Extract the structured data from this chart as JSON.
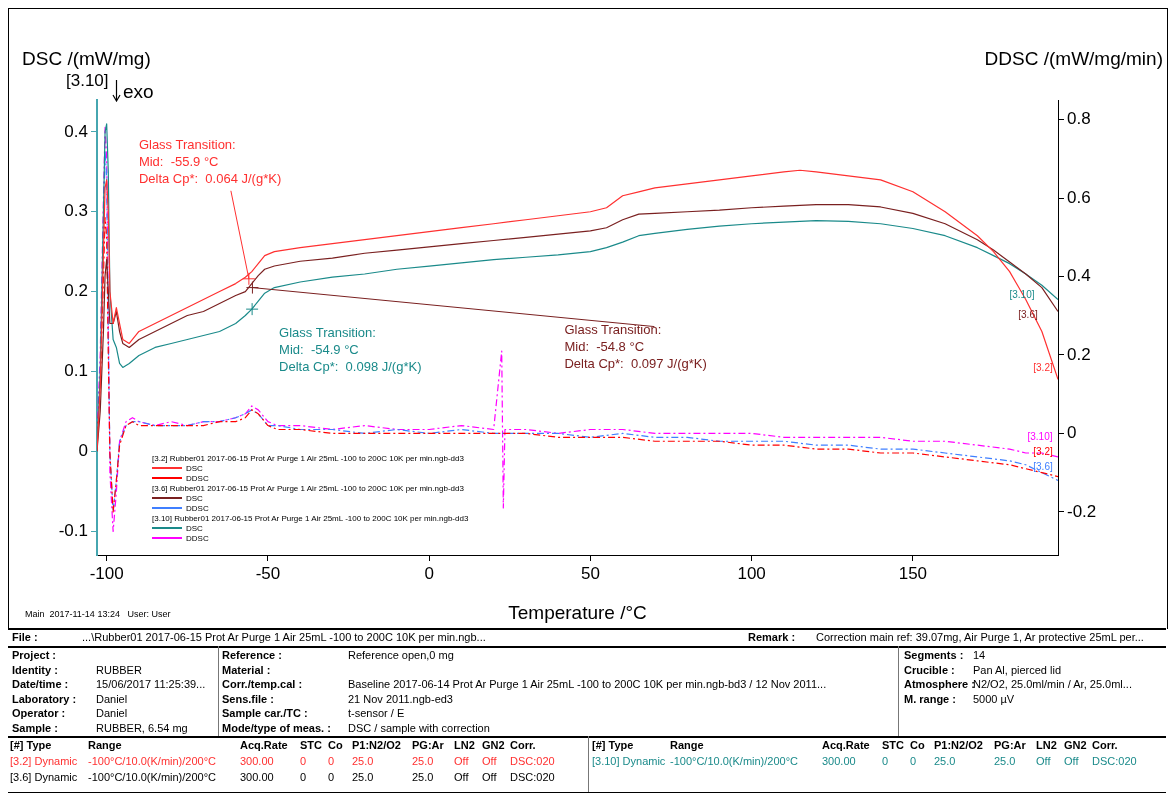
{
  "chart_data": [
    {
      "type": "line",
      "xlabel": "Temperature /°C",
      "ylabel": "DSC /(mW/mg)",
      "y2label": "DDSC /(mW/mg/min)",
      "xlim": [
        -103,
        195
      ],
      "xticks": [
        -100,
        -50,
        0,
        50,
        100,
        150
      ],
      "ylim": [
        -0.13,
        0.44
      ],
      "yticks": [
        -0.1,
        0.0,
        0.1,
        0.2,
        0.3,
        0.4
      ],
      "y2lim": [
        -0.31,
        0.85
      ],
      "y2ticks": [
        -0.2,
        0.0,
        0.2,
        0.4,
        0.6,
        0.8
      ],
      "grid": false,
      "legend": "bottom left",
      "marker": "none",
      "series": [
        {
          "name": "DSC",
          "color": "#ff3030",
          "line_style": "solid",
          "x": [
            -103,
            -102,
            -101,
            -100.5,
            -100,
            -99.5,
            -99,
            -98,
            -97,
            -96,
            -95,
            -93,
            -90,
            -85,
            -80,
            -75,
            -70,
            -65,
            -60,
            -57,
            -55,
            -53,
            -51,
            -48,
            -40,
            -30,
            -20,
            -10,
            0,
            10,
            20,
            30,
            40,
            50,
            55,
            60,
            65,
            70,
            80,
            90,
            100,
            110,
            115,
            120,
            130,
            140,
            150,
            160,
            170,
            175,
            180,
            185,
            190,
            195
          ],
          "values": [
            0.0,
            0.08,
            0.25,
            0.33,
            0.34,
            0.3,
            0.2,
            0.16,
            0.18,
            0.16,
            0.14,
            0.135,
            0.15,
            0.16,
            0.17,
            0.18,
            0.19,
            0.2,
            0.21,
            0.218,
            0.225,
            0.235,
            0.245,
            0.25,
            0.255,
            0.26,
            0.265,
            0.27,
            0.275,
            0.28,
            0.285,
            0.29,
            0.295,
            0.3,
            0.305,
            0.32,
            0.325,
            0.33,
            0.335,
            0.34,
            0.345,
            0.35,
            0.352,
            0.35,
            0.345,
            0.34,
            0.325,
            0.3,
            0.27,
            0.25,
            0.225,
            0.19,
            0.15,
            0.09
          ]
        },
        {
          "name": "DSC",
          "color": "#7a2020",
          "line_style": "solid",
          "x": [
            -103,
            -102,
            -101,
            -100.5,
            -100,
            -99.5,
            -99,
            -98,
            -97,
            -96,
            -95,
            -93,
            -90,
            -85,
            -80,
            -75,
            -70,
            -65,
            -60,
            -57,
            -55,
            -53,
            -51,
            -48,
            -40,
            -30,
            -20,
            -10,
            0,
            10,
            20,
            30,
            40,
            50,
            55,
            60,
            65,
            70,
            80,
            90,
            100,
            110,
            115,
            120,
            130,
            140,
            150,
            160,
            170,
            175,
            180,
            185,
            190,
            195
          ],
          "values": [
            0.0,
            0.05,
            0.15,
            0.22,
            0.24,
            0.2,
            0.16,
            0.16,
            0.175,
            0.15,
            0.135,
            0.13,
            0.14,
            0.15,
            0.16,
            0.17,
            0.175,
            0.185,
            0.195,
            0.2,
            0.21,
            0.22,
            0.228,
            0.232,
            0.238,
            0.242,
            0.248,
            0.252,
            0.256,
            0.26,
            0.264,
            0.268,
            0.272,
            0.276,
            0.28,
            0.29,
            0.297,
            0.298,
            0.3,
            0.302,
            0.305,
            0.307,
            0.308,
            0.309,
            0.309,
            0.306,
            0.298,
            0.285,
            0.265,
            0.252,
            0.237,
            0.222,
            0.205,
            0.175
          ]
        },
        {
          "name": "DSC",
          "color": "#1a8a8a",
          "line_style": "solid",
          "x": [
            -103,
            -102,
            -101,
            -100.5,
            -100,
            -99.5,
            -99,
            -98,
            -97,
            -96,
            -95,
            -93,
            -90,
            -85,
            -80,
            -75,
            -70,
            -65,
            -60,
            -57,
            -55,
            -53,
            -51,
            -48,
            -40,
            -30,
            -20,
            -10,
            0,
            10,
            20,
            30,
            40,
            50,
            55,
            60,
            65,
            70,
            80,
            90,
            100,
            110,
            115,
            120,
            130,
            140,
            150,
            160,
            170,
            175,
            180,
            185,
            190,
            195
          ],
          "values": [
            0.0,
            0.1,
            0.3,
            0.4,
            0.41,
            0.35,
            0.2,
            0.14,
            0.13,
            0.11,
            0.105,
            0.11,
            0.12,
            0.13,
            0.135,
            0.14,
            0.145,
            0.15,
            0.16,
            0.17,
            0.178,
            0.188,
            0.198,
            0.205,
            0.212,
            0.218,
            0.222,
            0.228,
            0.232,
            0.236,
            0.24,
            0.243,
            0.246,
            0.25,
            0.255,
            0.262,
            0.27,
            0.273,
            0.278,
            0.282,
            0.285,
            0.287,
            0.288,
            0.289,
            0.288,
            0.285,
            0.279,
            0.27,
            0.255,
            0.245,
            0.235,
            0.222,
            0.208,
            0.19
          ]
        },
        {
          "name": "DDSC",
          "color": "#ff0000",
          "axis": "y2",
          "line_style": "dashed",
          "x": [
            -103,
            -102,
            -101,
            -100.5,
            -100,
            -99.5,
            -99,
            -98,
            -97,
            -96,
            -94,
            -92,
            -90,
            -85,
            -80,
            -75,
            -70,
            -65,
            -60,
            -57,
            -55,
            -53,
            -50,
            -47,
            -40,
            -30,
            -20,
            -10,
            0,
            10,
            20,
            22.5,
            23,
            23.5,
            25,
            30,
            40,
            50,
            60,
            70,
            80,
            90,
            100,
            110,
            120,
            130,
            140,
            150,
            160,
            170,
            180,
            185,
            190,
            195
          ],
          "values": [
            0.0,
            0.12,
            0.4,
            0.55,
            0.5,
            0.2,
            -0.05,
            -0.2,
            -0.12,
            -0.03,
            0.02,
            0.03,
            0.02,
            0.02,
            0.02,
            0.02,
            0.02,
            0.03,
            0.03,
            0.04,
            0.06,
            0.05,
            0.02,
            0.01,
            0.01,
            0.0,
            0.0,
            0.0,
            0.0,
            0.0,
            0.0,
            0.0,
            0.0,
            0.0,
            0.0,
            0.0,
            -0.01,
            -0.01,
            -0.01,
            -0.02,
            -0.02,
            -0.02,
            -0.03,
            -0.03,
            -0.04,
            -0.04,
            -0.05,
            -0.05,
            -0.06,
            -0.07,
            -0.08,
            -0.09,
            -0.1,
            -0.11
          ]
        },
        {
          "name": "DDSC",
          "color": "#3f7fff",
          "axis": "y2",
          "line_style": "dashed",
          "x": [
            -103,
            -102,
            -101,
            -100.5,
            -100,
            -99.5,
            -99,
            -98,
            -97,
            -96,
            -94,
            -92,
            -90,
            -85,
            -80,
            -75,
            -70,
            -65,
            -60,
            -57,
            -55,
            -53,
            -50,
            -47,
            -40,
            -30,
            -20,
            -10,
            0,
            10,
            20,
            22.5,
            23,
            23.5,
            25,
            30,
            40,
            50,
            60,
            70,
            80,
            90,
            100,
            110,
            120,
            130,
            140,
            150,
            160,
            170,
            180,
            185,
            190,
            195
          ],
          "values": [
            0.0,
            0.15,
            0.5,
            0.72,
            0.65,
            0.25,
            -0.05,
            -0.2,
            -0.12,
            -0.02,
            0.02,
            0.03,
            0.03,
            0.02,
            0.02,
            0.02,
            0.03,
            0.03,
            0.04,
            0.05,
            0.06,
            0.05,
            0.02,
            0.02,
            0.01,
            0.01,
            0.0,
            0.01,
            0.0,
            0.01,
            0.0,
            0.0,
            0.0,
            0.0,
            0.0,
            0.0,
            0.0,
            -0.01,
            0.0,
            -0.01,
            -0.01,
            -0.02,
            -0.02,
            -0.02,
            -0.03,
            -0.03,
            -0.04,
            -0.04,
            -0.05,
            -0.06,
            -0.07,
            -0.08,
            -0.1,
            -0.12
          ]
        },
        {
          "name": "DDSC",
          "color": "#ff00ff",
          "axis": "y2",
          "line_style": "dashed",
          "x": [
            -103,
            -102,
            -101,
            -100.5,
            -100,
            -99.5,
            -99,
            -98,
            -97,
            -96,
            -94,
            -92,
            -90,
            -85,
            -80,
            -75,
            -70,
            -65,
            -60,
            -57,
            -55,
            -53,
            -50,
            -47,
            -40,
            -30,
            -20,
            -10,
            0,
            10,
            20,
            22.5,
            23,
            23.5,
            25,
            30,
            40,
            50,
            60,
            70,
            80,
            90,
            100,
            110,
            120,
            130,
            140,
            150,
            160,
            170,
            180,
            185,
            190,
            195
          ],
          "values": [
            0.0,
            0.2,
            0.6,
            0.78,
            0.7,
            0.3,
            -0.1,
            -0.25,
            -0.15,
            -0.02,
            0.03,
            0.04,
            0.03,
            0.02,
            0.03,
            0.02,
            0.03,
            0.03,
            0.04,
            0.05,
            0.07,
            0.06,
            0.03,
            0.02,
            0.02,
            0.01,
            0.02,
            0.01,
            0.01,
            0.02,
            0.01,
            0.21,
            -0.19,
            0.01,
            0.01,
            0.01,
            0.0,
            0.01,
            0.01,
            0.0,
            0.0,
            0.0,
            0.0,
            -0.01,
            -0.01,
            -0.01,
            -0.01,
            -0.02,
            -0.02,
            -0.03,
            -0.04,
            -0.05,
            -0.05,
            -0.06
          ]
        }
      ],
      "annotations": [
        "[3.2] Rubber01 2017-06-15 Prot Ar Purge 1 Air 25mL -100 to 200C 10K per min.ngb-dd3",
        "[3.6] Rubber01 2017-06-15 Prot Ar Purge 1 Air 25mL -100 to 200C 10K per min.ngb-dd3",
        "[3.10] Rubber01 2017-06-15 Prot Ar Purge 1 Air 25mL -100 to 200C 10K per min.ngb-dd3",
        {
          "text": "Glass Transition:\nMid:  -55.9 °C\nDelta Cp*:  0.064 J/(g*K)",
          "x": -55.9,
          "y": 0.216
        },
        {
          "text": "Glass Transition:\nMid:  -54.9 °C\nDelta Cp*:  0.098 J/(g*K)",
          "x": -54.9,
          "y": 0.178
        },
        {
          "text": "Glass Transition:\nMid:  -54.8 °C\nDelta Cp*:  0.097 J/(g*K)",
          "x": -54.8,
          "y": 0.205
        },
        "[3.10]",
        "[3.6]",
        "[3.2]",
        "[3.10]",
        "[3.2]",
        "[3.6]",
        "[3.10]",
        "exo",
        "Main  2017-11-14 13:24   User: User"
      ]
    },
    {
      "type": "other",
      "annotations": [
        "File :",
        "...\\Rubber01 2017-06-15 Prot Ar Purge 1 Air 25mL -100 to 200C 10K per min.ngb...",
        "Remark :",
        "Correction main ref: 39.07mg, Air Purge 1, Ar protective 25mL per...",
        "Project :",
        "Identity :",
        "RUBBER",
        "Date/time :",
        "15/06/2017 11:25:39...",
        "Laboratory :",
        "Daniel",
        "Operator :",
        "Daniel",
        "Sample :",
        "RUBBER, 6.54 mg",
        "Reference :",
        "Reference  open,0 mg",
        "Material :",
        "Corr./temp.cal :",
        "Baseline 2017-06-14 Prot Ar Purge 1 Air 25mL -100 to 200C 10K per min.ngb-bd3 / 12 Nov 2011...",
        "Sens.file :",
        "21 Nov 2011.ngb-ed3",
        "Sample car./TC :",
        "t-sensor / E",
        "Mode/type of meas. :",
        "DSC / sample with correction",
        "Segments :",
        "14",
        "Crucible :",
        "Pan Al, pierced lid",
        "Atmosphere :",
        "N2/O2, 25.0ml/min / Ar, 25.0ml...",
        "M. range :",
        "5000 µV",
        "[#] Type",
        "Range",
        "Acq.Rate",
        "STC",
        "Co",
        "P1:N2/O2",
        "PG:Ar",
        "LN2",
        "GN2",
        "Corr.",
        "[#] Type",
        "Range",
        "Acq.Rate",
        "STC",
        "Co",
        "P1:N2/O2",
        "PG:Ar",
        "LN2",
        "GN2",
        "Corr.",
        "[3.2] Dynamic",
        "-100°C/10.0(K/min)/200°C",
        "300.00",
        "0",
        "0",
        "25.0",
        "25.0",
        "Off",
        "Off",
        "DSC:020",
        "[3.10] Dynamic",
        "-100°C/10.0(K/min)/200°C",
        "300.00",
        "0",
        "0",
        "25.0",
        "25.0",
        "Off",
        "Off",
        "DSC:020",
        "[3.6] Dynamic",
        "-100°C/10.0(K/min)/200°C",
        "300.00",
        "0",
        "0",
        "25.0",
        "25.0",
        "Off",
        "Off",
        "DSC:020"
      ]
    }
  ]
}
